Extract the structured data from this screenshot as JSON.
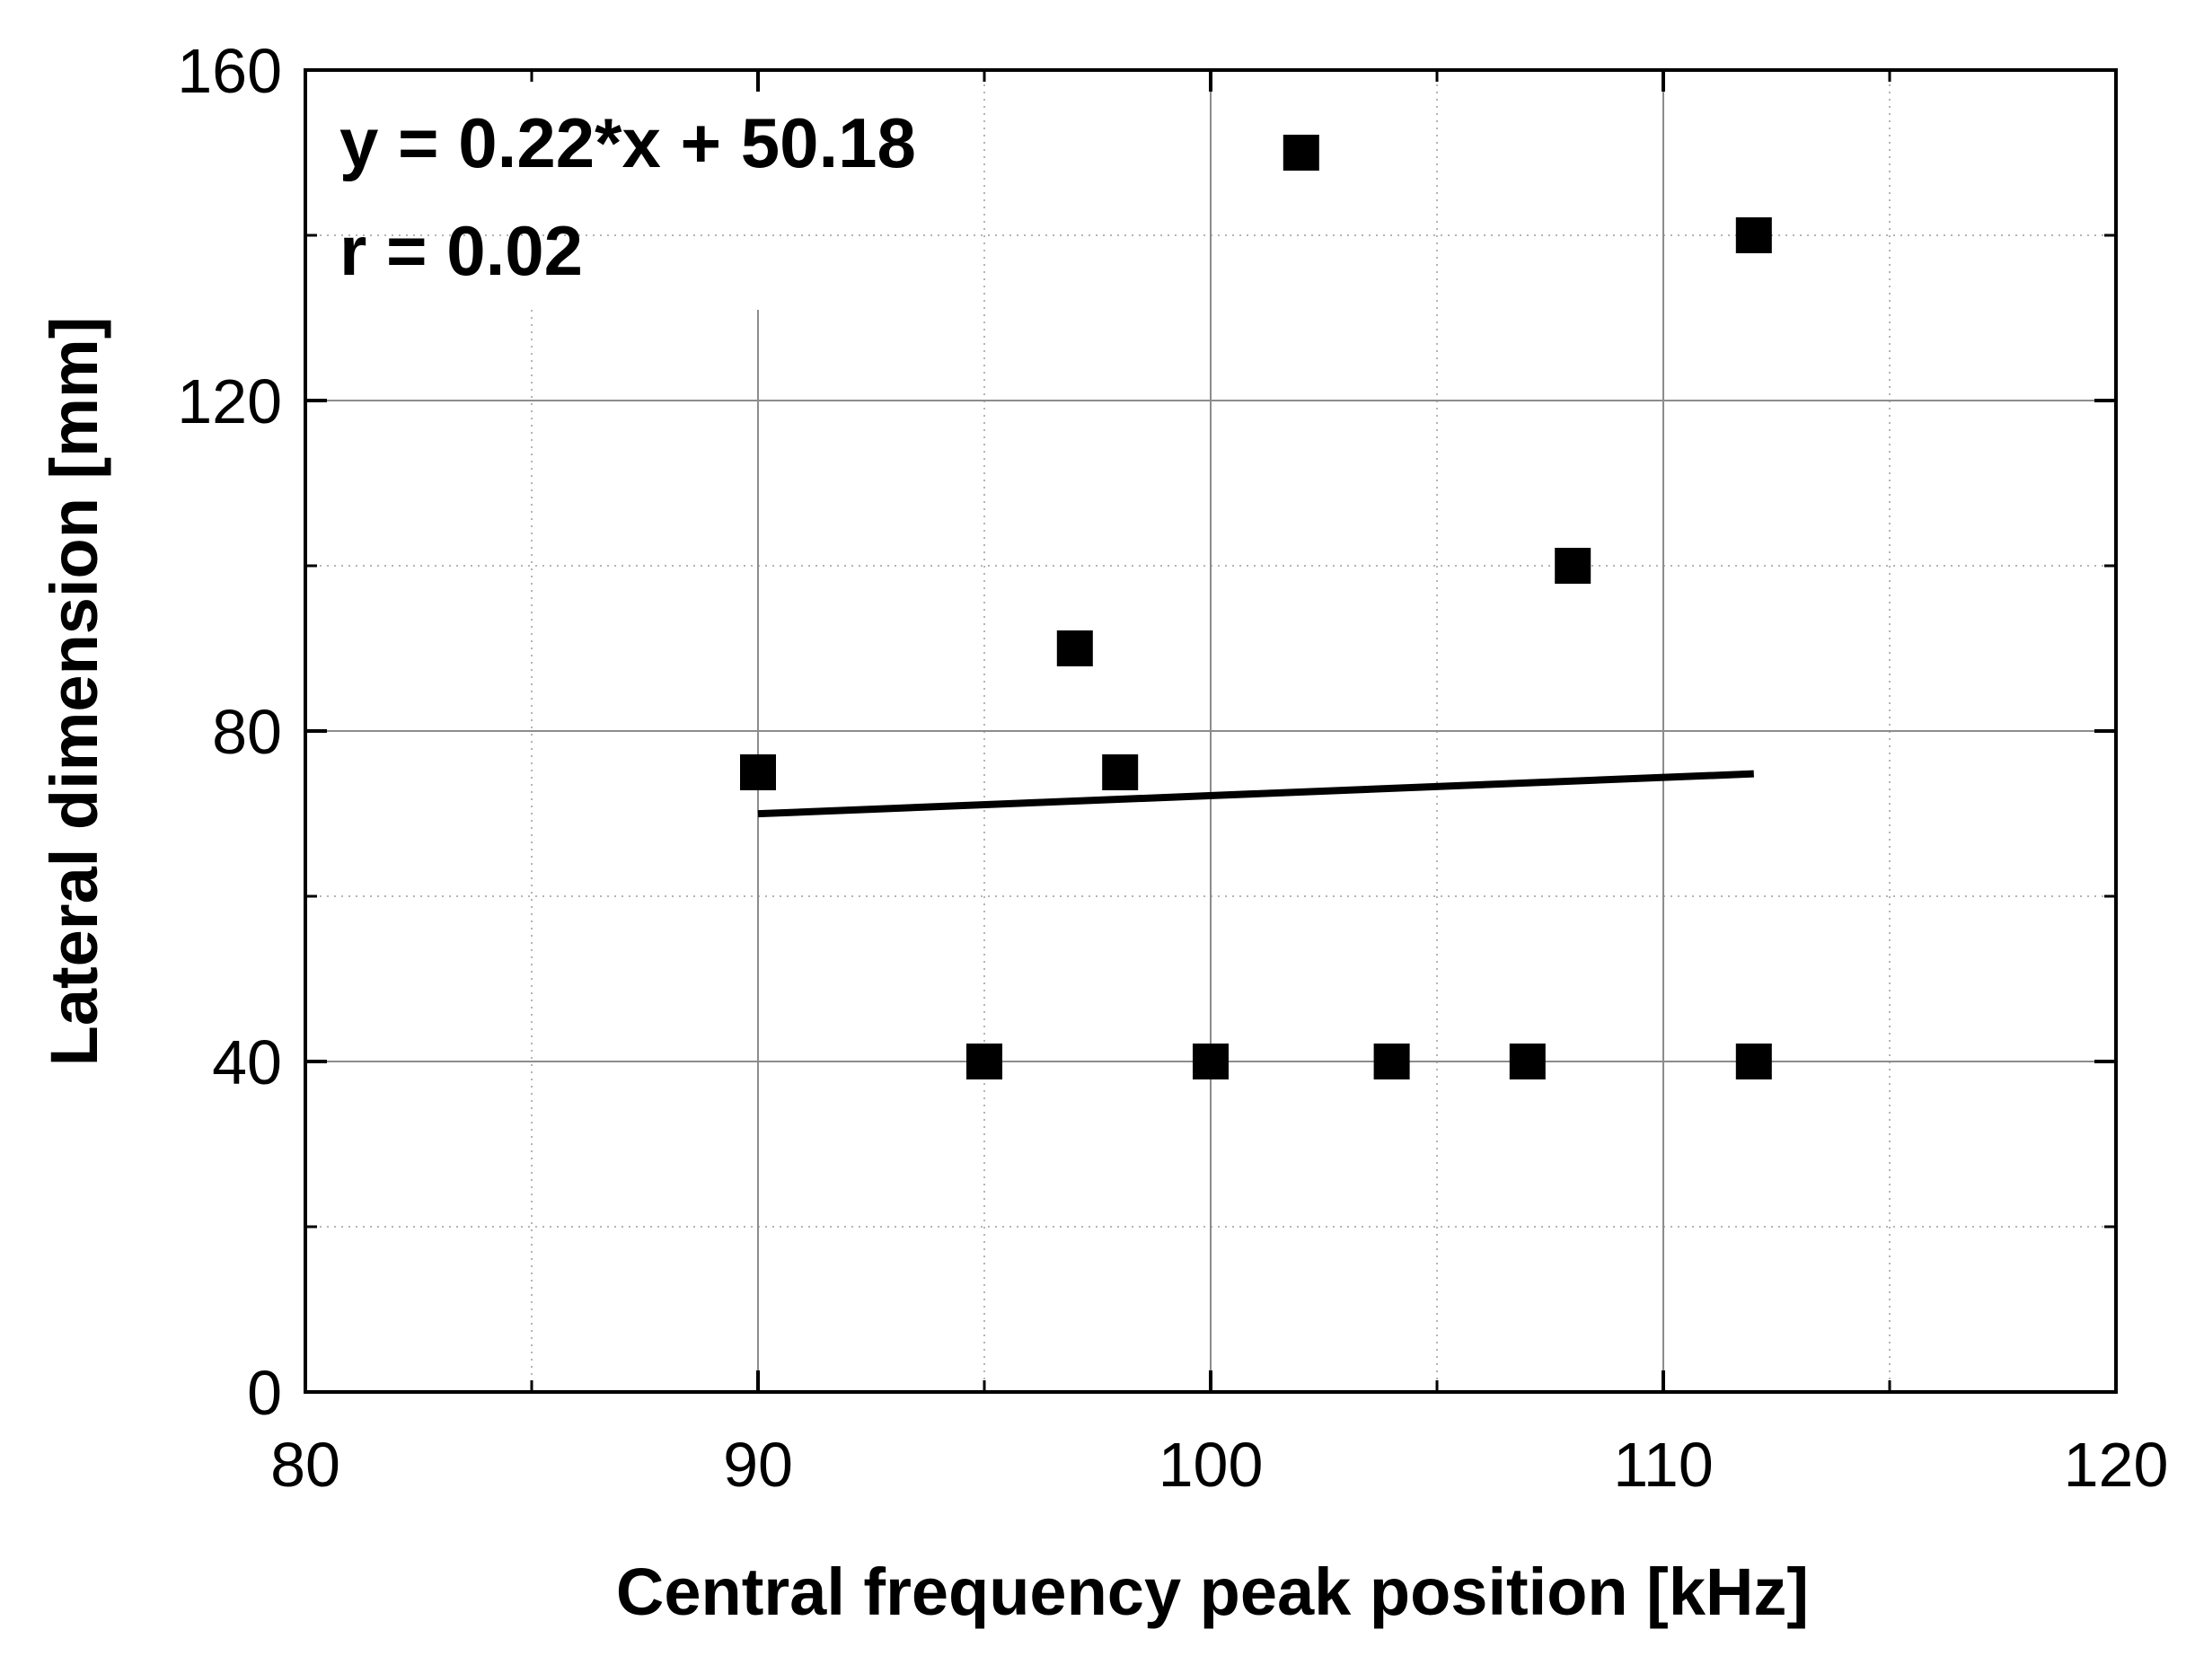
{
  "chart_data": {
    "type": "scatter",
    "title": "",
    "xlabel": "Central frequency peak position [kHz]",
    "ylabel": "Lateral dimension [mm]",
    "xlim": [
      80,
      120
    ],
    "ylim": [
      0,
      160
    ],
    "x_ticks": [
      80,
      90,
      100,
      110,
      120
    ],
    "y_ticks": [
      0,
      40,
      80,
      120,
      160
    ],
    "x_minor_ticks": [
      85,
      95,
      105,
      115
    ],
    "y_minor_ticks": [
      20,
      60,
      100,
      140
    ],
    "grid": true,
    "points": [
      {
        "x": 90,
        "y": 75
      },
      {
        "x": 95,
        "y": 40
      },
      {
        "x": 97,
        "y": 90
      },
      {
        "x": 98,
        "y": 75
      },
      {
        "x": 100,
        "y": 40
      },
      {
        "x": 102,
        "y": 150
      },
      {
        "x": 104,
        "y": 40
      },
      {
        "x": 107,
        "y": 40
      },
      {
        "x": 108,
        "y": 100
      },
      {
        "x": 112,
        "y": 140
      },
      {
        "x": 112,
        "y": 40
      }
    ],
    "fit_line": {
      "slope": 0.22,
      "intercept": 50.18,
      "x_range": [
        90,
        112
      ]
    },
    "annotations": [
      "y = 0.22*x + 50.18",
      "r = 0.02"
    ],
    "colors": {
      "marker": "#000000",
      "fit": "#000000",
      "major_grid": "#8c8c8c",
      "minor_grid": "#b4b4b4"
    }
  }
}
